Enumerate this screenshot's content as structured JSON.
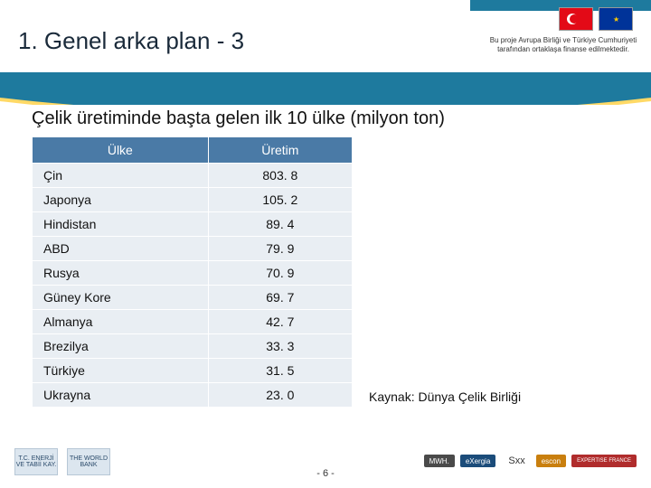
{
  "header": {
    "title": "1. Genel arka plan - 3",
    "funding_note": "Bu proje Avrupa Birliği ve Türkiye Cumhuriyeti tarafından ortaklaşa finanse edilmektedir."
  },
  "subtitle": "Çelik üretiminde başta gelen ilk 10 ülke (milyon ton)",
  "table": {
    "columns": [
      "Ülke",
      "Üretim"
    ],
    "rows": [
      [
        "Çin",
        "803. 8"
      ],
      [
        "Japonya",
        "105. 2"
      ],
      [
        "Hindistan",
        "89. 4"
      ],
      [
        "ABD",
        "79. 9"
      ],
      [
        "Rusya",
        "70. 9"
      ],
      [
        "Güney Kore",
        "69. 7"
      ],
      [
        "Almanya",
        "42. 7"
      ],
      [
        "Brezilya",
        "33. 3"
      ],
      [
        "Türkiye",
        "31. 5"
      ],
      [
        "Ukrayna",
        "23. 0"
      ]
    ],
    "header_bg": "#4a7aa6",
    "header_color": "#ffffff",
    "cell_bg": "#e9eef3",
    "font_size": 14
  },
  "source_label": "Kaynak: Dünya Çelik Birliği",
  "footer": {
    "left_logos": [
      "T.C. ENERJİ VE TABİİ KAY.",
      "THE WORLD BANK"
    ],
    "page_number": "- 6 -",
    "right_logos_top": [
      "MWH.",
      "eXergia"
    ],
    "sxx": "Sxx",
    "right_logos_bottom": [
      "escon",
      "EXPERTISE FRANCE"
    ]
  },
  "colors": {
    "wave_blue": "#1e7a9e",
    "wave_yellow": "#ffd966",
    "page_bg": "#ffffff"
  }
}
